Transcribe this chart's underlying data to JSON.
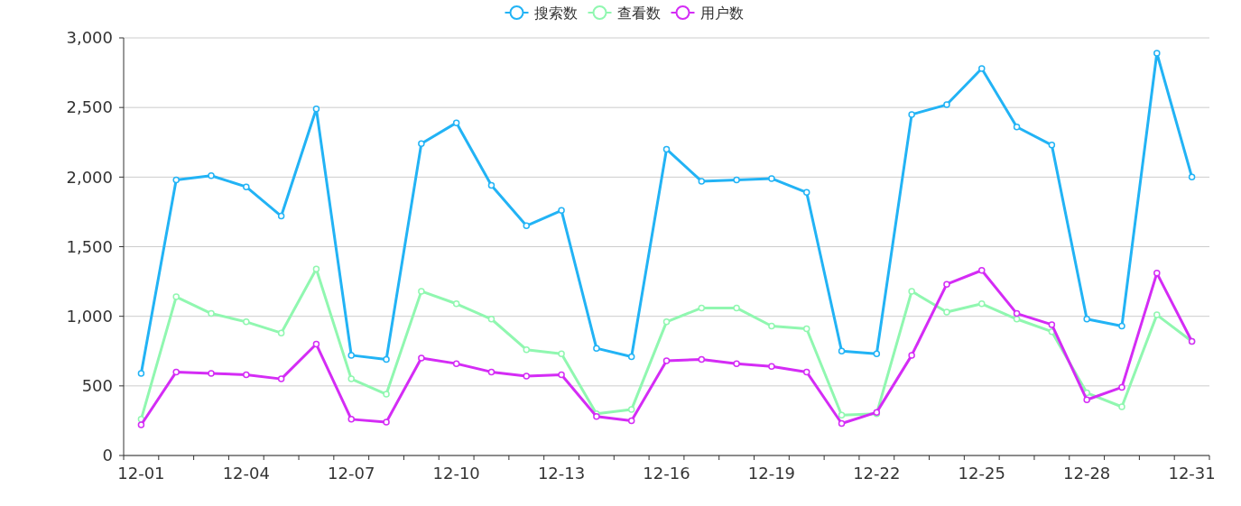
{
  "chart_data": {
    "type": "line",
    "categories": [
      "12-01",
      null,
      null,
      "12-04",
      null,
      null,
      "12-07",
      null,
      null,
      "12-10",
      null,
      null,
      "12-13",
      null,
      null,
      "12-16",
      null,
      null,
      "12-19",
      null,
      null,
      "12-22",
      null,
      null,
      "12-25",
      null,
      null,
      "12-28",
      null,
      null,
      "12-31"
    ],
    "series": [
      {
        "name": "搜索数",
        "color": "#22b3f5",
        "values": [
          590,
          1980,
          2010,
          1930,
          1720,
          2490,
          720,
          690,
          2240,
          2390,
          1940,
          1650,
          1760,
          770,
          710,
          2200,
          1970,
          1980,
          1990,
          1890,
          750,
          730,
          2450,
          2520,
          2780,
          2360,
          2230,
          980,
          930,
          2890,
          2000
        ]
      },
      {
        "name": "查看数",
        "color": "#90f7b0",
        "values": [
          260,
          1140,
          1020,
          960,
          880,
          1340,
          550,
          440,
          1180,
          1090,
          980,
          760,
          730,
          300,
          330,
          960,
          1060,
          1060,
          930,
          910,
          290,
          300,
          1180,
          1030,
          1090,
          980,
          890,
          450,
          350,
          1010,
          820
        ]
      },
      {
        "name": "用户数",
        "color": "#d42cf5",
        "values": [
          220,
          600,
          590,
          580,
          550,
          800,
          260,
          240,
          700,
          660,
          600,
          570,
          580,
          280,
          250,
          680,
          690,
          660,
          640,
          600,
          230,
          310,
          720,
          1230,
          1330,
          1020,
          940,
          400,
          490,
          1310,
          820
        ]
      }
    ],
    "ylim": [
      0,
      3000
    ],
    "yticks": [
      {
        "value": 0,
        "label": "0"
      },
      {
        "value": 500,
        "label": "500"
      },
      {
        "value": 1000,
        "label": "1,000"
      },
      {
        "value": 1500,
        "label": "1,500"
      },
      {
        "value": 2000,
        "label": "2,000"
      },
      {
        "value": 2500,
        "label": "2,500"
      },
      {
        "value": 3000,
        "label": "3,000"
      }
    ],
    "grid": "y",
    "legend": "top",
    "marker": "circle",
    "line_style": "solid"
  }
}
